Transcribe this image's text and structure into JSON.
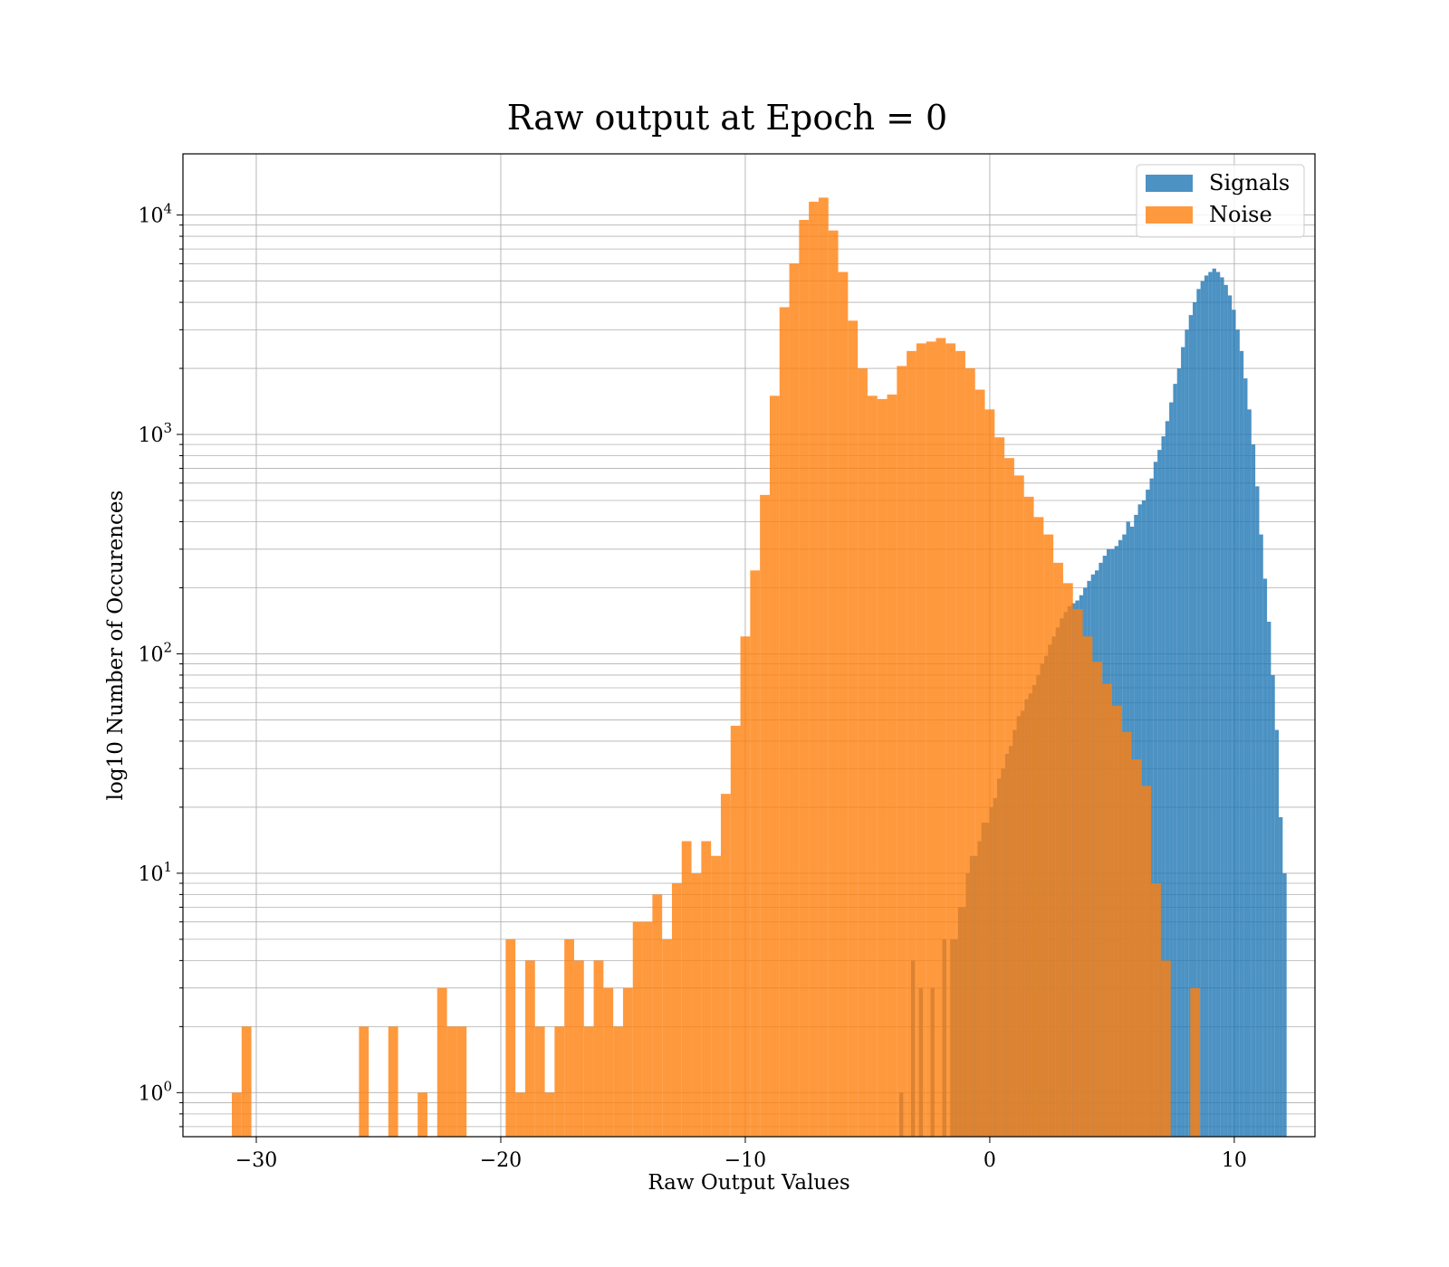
{
  "chart_data": {
    "type": "bar",
    "title": "Raw output at Epoch = 0",
    "xlabel": "Raw Output Values",
    "ylabel": "log10 Number of Occurences",
    "xlim": [
      -33,
      13.3
    ],
    "ylim": [
      0.63,
      19000
    ],
    "yscale": "log",
    "grid": true,
    "legend": "top-right",
    "xticks": [
      {
        "value": -30,
        "label": "−30"
      },
      {
        "value": -20,
        "label": "−20"
      },
      {
        "value": -10,
        "label": "−10"
      },
      {
        "value": 0,
        "label": "0"
      },
      {
        "value": 10,
        "label": "10"
      }
    ],
    "yticks": [
      {
        "value": 1,
        "label": "10",
        "exp": "0"
      },
      {
        "value": 10,
        "label": "10",
        "exp": "1"
      },
      {
        "value": 100,
        "label": "10",
        "exp": "2"
      },
      {
        "value": 1000,
        "label": "10",
        "exp": "3"
      },
      {
        "value": 10000,
        "label": "10",
        "exp": "4"
      }
    ],
    "series": [
      {
        "name": "Signals",
        "color": "#1f77b4",
        "x_start": -3.7,
        "bin_width": 0.16,
        "values": [
          1,
          0,
          0,
          4,
          0,
          3,
          0,
          0,
          3,
          0,
          0,
          5,
          0,
          5,
          5,
          7,
          7,
          10,
          12,
          12,
          14,
          17,
          17,
          20,
          22,
          27,
          30,
          35,
          38,
          45,
          52,
          55,
          62,
          66,
          72,
          80,
          90,
          98,
          110,
          120,
          132,
          145,
          155,
          165,
          170,
          175,
          185,
          200,
          215,
          230,
          240,
          260,
          280,
          300,
          300,
          310,
          330,
          350,
          400,
          380,
          430,
          480,
          500,
          560,
          630,
          750,
          850,
          980,
          1150,
          1400,
          1700,
          2000,
          2500,
          3000,
          3500,
          4000,
          4600,
          5000,
          5300,
          5500,
          5700,
          5500,
          5200,
          4800,
          4300,
          3700,
          3000,
          2400,
          1800,
          1300,
          900,
          580,
          350,
          220,
          140,
          80,
          45,
          18,
          10
        ]
      },
      {
        "name": "Noise",
        "color": "#ff7f0e",
        "x_start": -31,
        "bin_width": 0.4,
        "values": [
          1,
          2,
          0,
          0,
          0,
          0,
          0,
          0,
          0,
          0,
          0,
          0,
          0,
          2,
          0,
          0,
          2,
          0,
          0,
          1,
          0,
          3,
          2,
          2,
          0,
          0,
          0,
          0,
          5,
          1,
          4,
          2,
          1,
          2,
          5,
          4,
          2,
          4,
          3,
          2,
          3,
          6,
          6,
          8,
          5,
          9,
          14,
          10,
          14,
          12,
          23,
          47,
          120,
          240,
          530,
          1500,
          3800,
          6000,
          9500,
          11500,
          12000,
          8500,
          5500,
          3300,
          2000,
          1500,
          1450,
          1520,
          2050,
          2400,
          2600,
          2650,
          2750,
          2600,
          2400,
          2000,
          1600,
          1300,
          970,
          780,
          650,
          520,
          420,
          350,
          260,
          210,
          160,
          120,
          92,
          73,
          58,
          44,
          33,
          25,
          9,
          4,
          0,
          0,
          3
        ]
      }
    ]
  }
}
